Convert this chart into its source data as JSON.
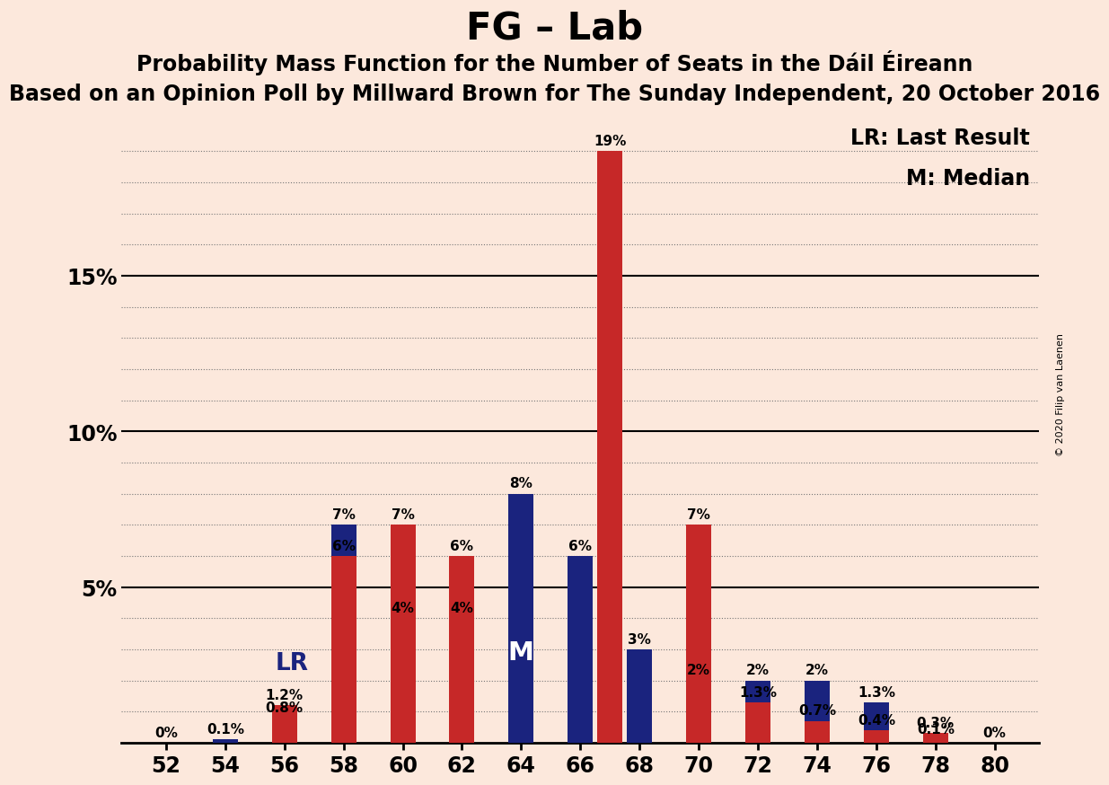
{
  "title": "FG – Lab",
  "subtitle1": "Probability Mass Function for the Number of Seats in the Dáil Éireann",
  "subtitle2": "Based on an Opinion Poll by Millward Brown for The Sunday Independent, 20 October 2016",
  "copyright": "© 2020 Filip van Laenen",
  "legend1": "LR: Last Result",
  "legend2": "M: Median",
  "lr_label": "LR",
  "median_label": "M",
  "seats": [
    52,
    53,
    54,
    55,
    56,
    57,
    58,
    59,
    60,
    61,
    62,
    63,
    64,
    65,
    66,
    67,
    68,
    69,
    70,
    71,
    72,
    73,
    74,
    75,
    76,
    77,
    78,
    79,
    80
  ],
  "navy_values": [
    0.0,
    0.0,
    0.1,
    0.0,
    0.8,
    0.0,
    7.0,
    0.0,
    4.0,
    0.0,
    4.0,
    0.0,
    8.0,
    0.0,
    6.0,
    0.0,
    3.0,
    0.0,
    2.0,
    0.0,
    2.0,
    0.0,
    2.0,
    0.0,
    1.3,
    0.0,
    0.1,
    0.0,
    0.0
  ],
  "red_values": [
    0.0,
    0.0,
    0.0,
    0.0,
    1.2,
    0.0,
    6.0,
    0.0,
    7.0,
    0.0,
    6.0,
    0.0,
    0.0,
    0.0,
    0.0,
    19.0,
    0.0,
    0.0,
    7.0,
    0.0,
    1.3,
    0.0,
    0.7,
    0.0,
    0.4,
    0.0,
    0.3,
    0.0,
    0.0
  ],
  "navy_labels": [
    "0%",
    "",
    "0.1%",
    "",
    "0.8%",
    "",
    "7%",
    "",
    "4%",
    "",
    "4%",
    "",
    "8%",
    "",
    "6%",
    "",
    "3%",
    "",
    "2%",
    "",
    "2%",
    "",
    "2%",
    "",
    "1.3%",
    "",
    "0.1%",
    "",
    "0%"
  ],
  "red_labels": [
    "",
    "",
    "",
    "",
    "1.2%",
    "",
    "6%",
    "",
    "7%",
    "",
    "6%",
    "",
    "",
    "",
    "",
    "19%",
    "",
    "",
    "7%",
    "",
    "1.3%",
    "",
    "0.7%",
    "",
    "0.4%",
    "",
    "0.3%",
    "",
    "0%"
  ],
  "lr_seat": 56,
  "median_seat": 64,
  "navy_color": "#1a237e",
  "red_color": "#c62828",
  "bg_color": "#fce8dc",
  "grid_color": "#777777",
  "ylim_max": 20,
  "ytick_vals": [
    5,
    10,
    15
  ],
  "ytick_labels": [
    "5%",
    "10%",
    "15%"
  ],
  "xtick_vals": [
    52,
    54,
    56,
    58,
    60,
    62,
    64,
    66,
    68,
    70,
    72,
    74,
    76,
    78,
    80
  ],
  "title_fontsize": 30,
  "subtitle1_fontsize": 17,
  "subtitle2_fontsize": 17,
  "label_fontsize": 11,
  "tick_fontsize": 17,
  "legend_fontsize": 17,
  "annot_fontsize": 19,
  "bar_width": 0.85
}
